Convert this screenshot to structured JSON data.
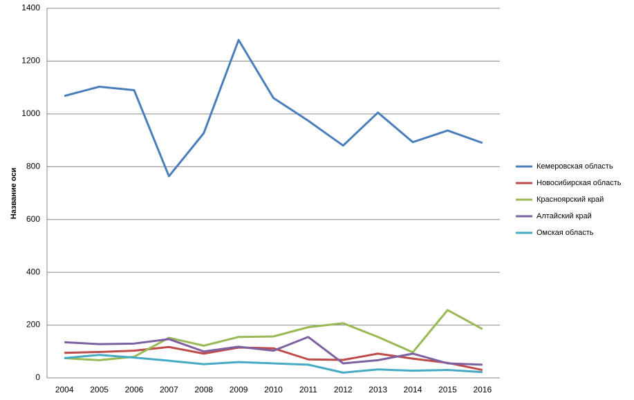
{
  "chart_data": {
    "type": "line",
    "y_label": "Название оси",
    "categories": [
      "2004",
      "2005",
      "2006",
      "2007",
      "2008",
      "2009",
      "2010",
      "2011",
      "2012",
      "2013",
      "2014",
      "2015",
      "2016"
    ],
    "ylim": [
      0,
      1400
    ],
    "yticks": [
      0,
      200,
      400,
      600,
      800,
      1000,
      1200,
      1400
    ],
    "grid": true,
    "legend": "right",
    "series": [
      {
        "name": "Кемеровская область",
        "color": "#4a7ebb",
        "values": [
          1068,
          1103,
          1090,
          764,
          927,
          1280,
          1060,
          974,
          880,
          1005,
          893,
          937,
          890
        ]
      },
      {
        "name": "Новосибирская область",
        "color": "#be4b48",
        "values": [
          95,
          98,
          103,
          117,
          92,
          115,
          112,
          70,
          68,
          92,
          73,
          57,
          30
        ]
      },
      {
        "name": "Красноярский край",
        "color": "#98b954",
        "values": [
          75,
          67,
          80,
          152,
          122,
          155,
          157,
          192,
          207,
          155,
          97,
          257,
          185
        ]
      },
      {
        "name": "Алтайский край",
        "color": "#7d60a0",
        "values": [
          135,
          128,
          130,
          147,
          100,
          118,
          103,
          155,
          55,
          67,
          92,
          55,
          50
        ]
      },
      {
        "name": "Омская область",
        "color": "#46aac5",
        "values": [
          75,
          87,
          77,
          65,
          52,
          60,
          55,
          50,
          20,
          32,
          27,
          30,
          22
        ]
      }
    ]
  }
}
